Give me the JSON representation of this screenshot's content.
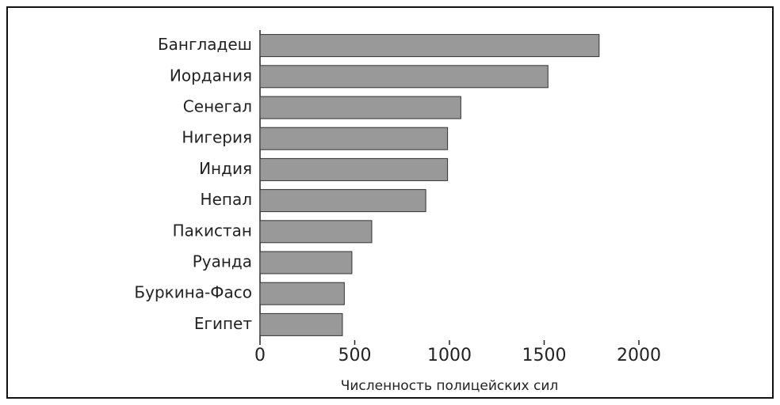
{
  "chart_data": {
    "type": "barh",
    "categories": [
      "Бангладеш",
      "Иордания",
      "Сенегал",
      "Нигерия",
      "Индия",
      "Непал",
      "Пакистан",
      "Руанда",
      "Буркина-Фасо",
      "Египет"
    ],
    "values": [
      1790,
      1520,
      1060,
      990,
      990,
      875,
      590,
      485,
      445,
      435
    ],
    "color": "#999999",
    "xlabel": "Численность полицейских сил",
    "xlim": [
      0,
      2000
    ],
    "xticks": [
      0,
      500,
      1000,
      1500,
      2000
    ]
  }
}
